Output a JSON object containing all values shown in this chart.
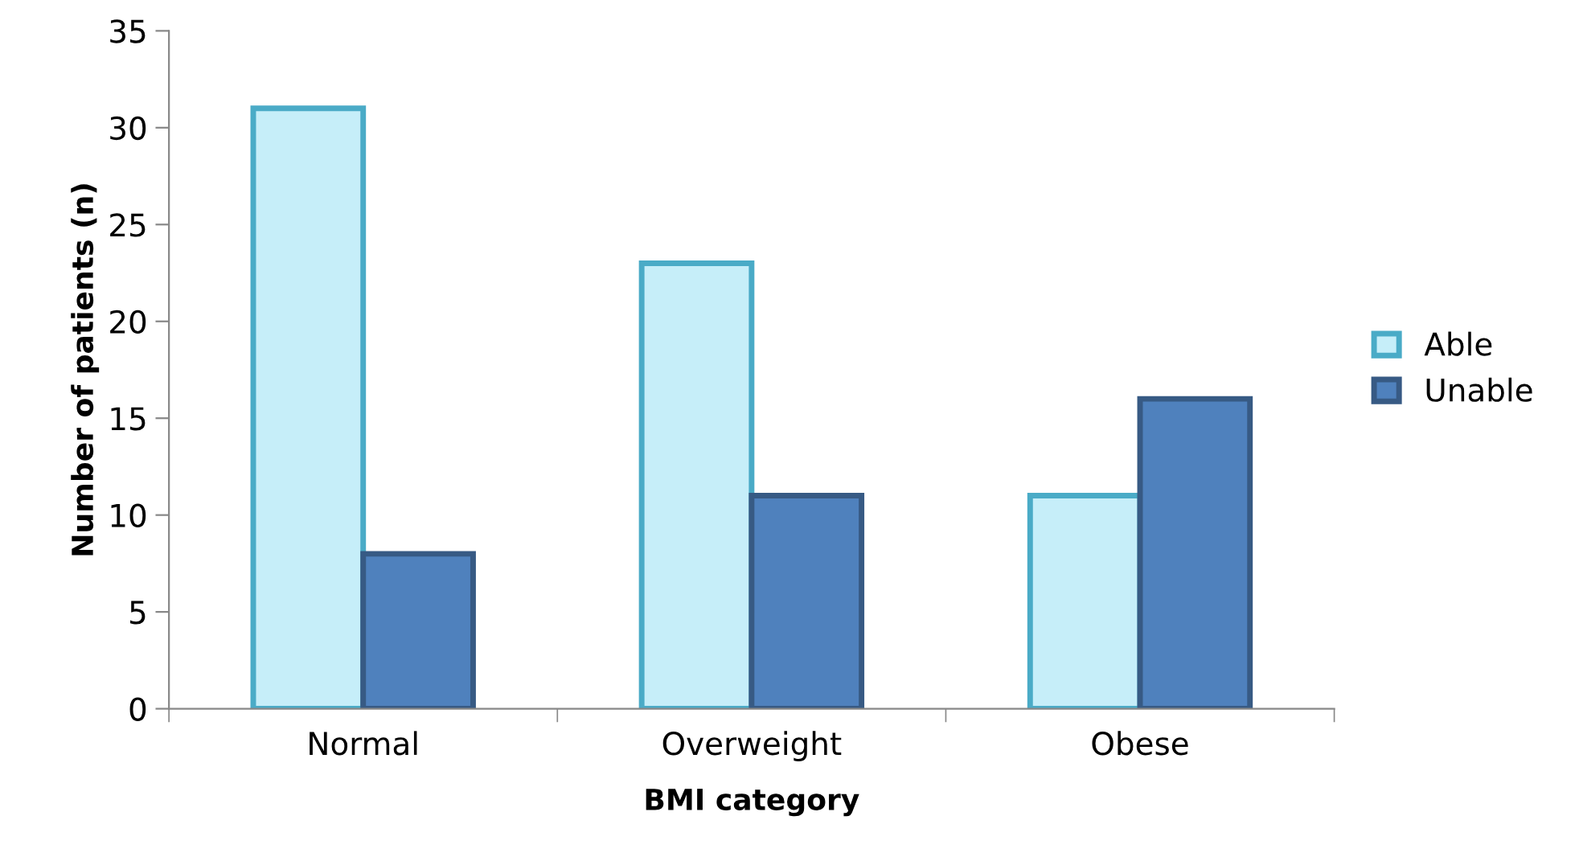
{
  "chart_data": {
    "type": "bar",
    "xlabel": "BMI category",
    "ylabel": "Number of patients (n)",
    "categories": [
      "Normal",
      "Overweight",
      "Obese"
    ],
    "series": [
      {
        "name": "Able",
        "color": "#c6eef9",
        "values": [
          31,
          23,
          11
        ]
      },
      {
        "name": "Unable",
        "color": "#4f81bd",
        "values": [
          8,
          11,
          16
        ]
      }
    ],
    "ylim": [
      0,
      35
    ],
    "yticks": [
      0,
      5,
      10,
      15,
      20,
      25,
      30,
      35
    ],
    "grid": false,
    "legend": "right"
  }
}
